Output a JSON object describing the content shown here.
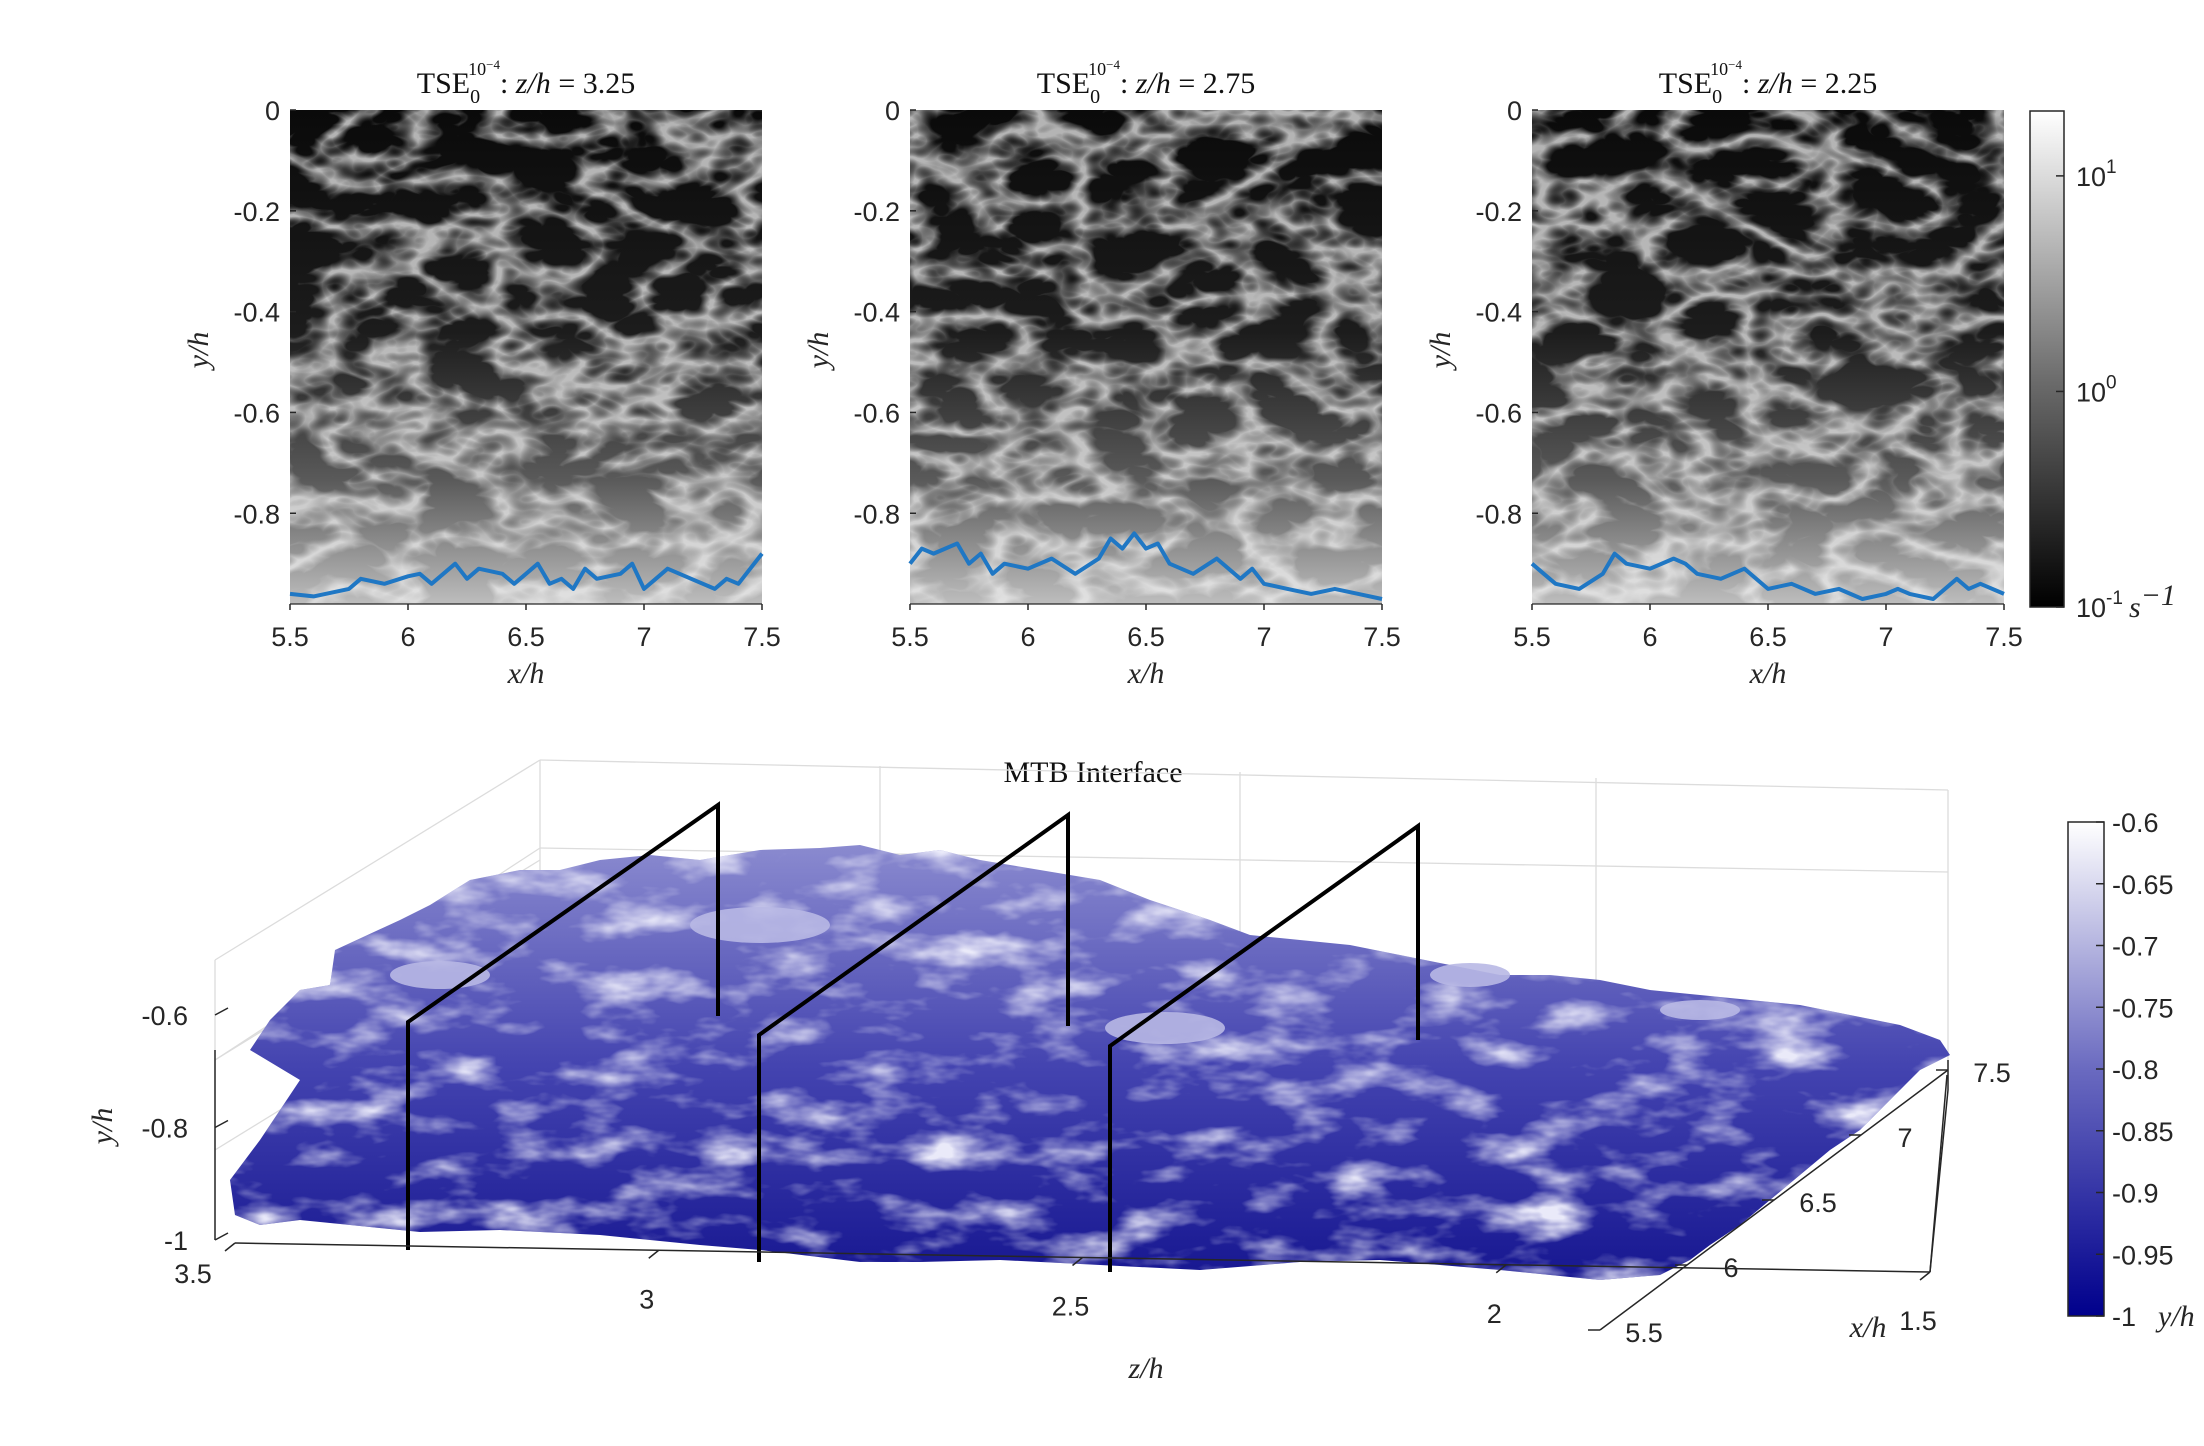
{
  "chart_data": [
    {
      "type": "heatmap",
      "title": "TSE_0^{10^-4}: z/h = 3.25",
      "title_parts": {
        "base": "TSE",
        "sub": "0",
        "sup": "10",
        "supsup": "−4",
        "var": "z/h",
        "eq": " = 3.25"
      },
      "xlabel": "x/h",
      "ylabel": "y/h",
      "xlim": [
        5.5,
        7.5
      ],
      "ylim": [
        -0.98,
        0
      ],
      "xticks": [
        "5.5",
        "6",
        "6.5",
        "7",
        "7.5"
      ],
      "yticks": [
        "0",
        "-0.2",
        "-0.4",
        "-0.6",
        "-0.8"
      ],
      "xtick_values": [
        5.5,
        6,
        6.5,
        7,
        7.5
      ],
      "ytick_values": [
        0,
        -0.2,
        -0.4,
        -0.6,
        -0.8
      ],
      "colormap": "gray",
      "color_scale": "log",
      "interface_line": {
        "color": "#1f77c4",
        "x": [
          5.5,
          5.6,
          5.7,
          5.75,
          5.8,
          5.9,
          6.0,
          6.05,
          6.1,
          6.2,
          6.25,
          6.3,
          6.4,
          6.45,
          6.5,
          6.55,
          6.6,
          6.65,
          6.7,
          6.75,
          6.8,
          6.9,
          6.95,
          7.0,
          7.05,
          7.1,
          7.2,
          7.3,
          7.35,
          7.4,
          7.45,
          7.5
        ],
        "y": [
          -0.96,
          -0.965,
          -0.955,
          -0.95,
          -0.93,
          -0.94,
          -0.925,
          -0.92,
          -0.94,
          -0.9,
          -0.93,
          -0.91,
          -0.92,
          -0.94,
          -0.92,
          -0.9,
          -0.94,
          -0.93,
          -0.95,
          -0.91,
          -0.93,
          -0.92,
          -0.9,
          -0.95,
          -0.93,
          -0.91,
          -0.93,
          -0.95,
          -0.93,
          -0.94,
          -0.91,
          -0.88
        ]
      }
    },
    {
      "type": "heatmap",
      "title": "TSE_0^{10^-4}: z/h = 2.75",
      "title_parts": {
        "base": "TSE",
        "sub": "0",
        "sup": "10",
        "supsup": "−4",
        "var": "z/h",
        "eq": " = 2.75"
      },
      "xlabel": "x/h",
      "ylabel": "y/h",
      "xlim": [
        5.5,
        7.5
      ],
      "ylim": [
        -0.98,
        0
      ],
      "xticks": [
        "5.5",
        "6",
        "6.5",
        "7",
        "7.5"
      ],
      "yticks": [
        "0",
        "-0.2",
        "-0.4",
        "-0.6",
        "-0.8"
      ],
      "xtick_values": [
        5.5,
        6,
        6.5,
        7,
        7.5
      ],
      "ytick_values": [
        0,
        -0.2,
        -0.4,
        -0.6,
        -0.8
      ],
      "colormap": "gray",
      "color_scale": "log",
      "interface_line": {
        "color": "#1f77c4",
        "x": [
          5.5,
          5.55,
          5.6,
          5.7,
          5.75,
          5.8,
          5.85,
          5.9,
          6.0,
          6.1,
          6.2,
          6.3,
          6.35,
          6.4,
          6.45,
          6.5,
          6.55,
          6.6,
          6.7,
          6.8,
          6.9,
          6.95,
          7.0,
          7.1,
          7.2,
          7.3,
          7.4,
          7.5
        ],
        "y": [
          -0.9,
          -0.87,
          -0.88,
          -0.86,
          -0.9,
          -0.88,
          -0.92,
          -0.9,
          -0.91,
          -0.89,
          -0.92,
          -0.89,
          -0.85,
          -0.87,
          -0.84,
          -0.87,
          -0.86,
          -0.9,
          -0.92,
          -0.89,
          -0.93,
          -0.91,
          -0.94,
          -0.95,
          -0.96,
          -0.95,
          -0.96,
          -0.97
        ]
      }
    },
    {
      "type": "heatmap",
      "title": "TSE_0^{10^-4}: z/h = 2.25",
      "title_parts": {
        "base": "TSE",
        "sub": "0",
        "sup": "10",
        "supsup": "−4",
        "var": "z/h",
        "eq": " = 2.25"
      },
      "xlabel": "x/h",
      "ylabel": "y/h",
      "xlim": [
        5.5,
        7.5
      ],
      "ylim": [
        -0.98,
        0
      ],
      "xticks": [
        "5.5",
        "6",
        "6.5",
        "7",
        "7.5"
      ],
      "yticks": [
        "0",
        "-0.2",
        "-0.4",
        "-0.6",
        "-0.8"
      ],
      "xtick_values": [
        5.5,
        6,
        6.5,
        7,
        7.5
      ],
      "ytick_values": [
        0,
        -0.2,
        -0.4,
        -0.6,
        -0.8
      ],
      "colormap": "gray",
      "color_scale": "log",
      "interface_line": {
        "color": "#1f77c4",
        "x": [
          5.5,
          5.55,
          5.6,
          5.7,
          5.8,
          5.85,
          5.9,
          6.0,
          6.1,
          6.15,
          6.2,
          6.3,
          6.4,
          6.5,
          6.6,
          6.7,
          6.8,
          6.9,
          7.0,
          7.05,
          7.1,
          7.2,
          7.3,
          7.35,
          7.4,
          7.5
        ],
        "y": [
          -0.9,
          -0.92,
          -0.94,
          -0.95,
          -0.92,
          -0.88,
          -0.9,
          -0.91,
          -0.89,
          -0.9,
          -0.92,
          -0.93,
          -0.91,
          -0.95,
          -0.94,
          -0.96,
          -0.95,
          -0.97,
          -0.96,
          -0.95,
          -0.96,
          -0.97,
          -0.93,
          -0.95,
          -0.94,
          -0.96
        ]
      }
    },
    {
      "type": "heatmap",
      "title": "MTB Interface",
      "projection": "3d-surface",
      "xlabel": "z/h",
      "ylabel": "y/h",
      "zlabel": "x/h",
      "zh_lim": [
        3.5,
        1.5
      ],
      "yh_lim": [
        -1,
        -0.5
      ],
      "xh_lim": [
        5.5,
        7.5
      ],
      "zh_ticks": [
        "3.5",
        "3",
        "2.5",
        "2",
        "1.5"
      ],
      "yh_ticks": [
        "-0.6",
        "-0.8",
        "-1"
      ],
      "xh_ticks": [
        "5.5",
        "6",
        "6.5",
        "7",
        "7.5"
      ],
      "slice_planes_zh": [
        3.25,
        2.75,
        2.25
      ],
      "colormap": "blue-to-white"
    }
  ],
  "colorbar_gray": {
    "scale": "log",
    "range": [
      0.1,
      20
    ],
    "ticks": [
      {
        "base": "10",
        "exp": "-1",
        "unit": "s",
        "unit_exp": "−1"
      },
      {
        "base": "10",
        "exp": "0"
      },
      {
        "base": "10",
        "exp": "1"
      }
    ],
    "tick_values": [
      0.1,
      1,
      10
    ]
  },
  "colorbar_blue": {
    "range": [
      -1,
      -0.6
    ],
    "ticks": [
      "-0.6",
      "-0.65",
      "-0.7",
      "-0.75",
      "-0.8",
      "-0.85",
      "-0.9",
      "-0.95",
      "-1"
    ],
    "tick_values": [
      -0.6,
      -0.65,
      -0.7,
      -0.75,
      -0.8,
      -0.85,
      -0.9,
      -0.95,
      -1
    ],
    "label": "y/h"
  }
}
